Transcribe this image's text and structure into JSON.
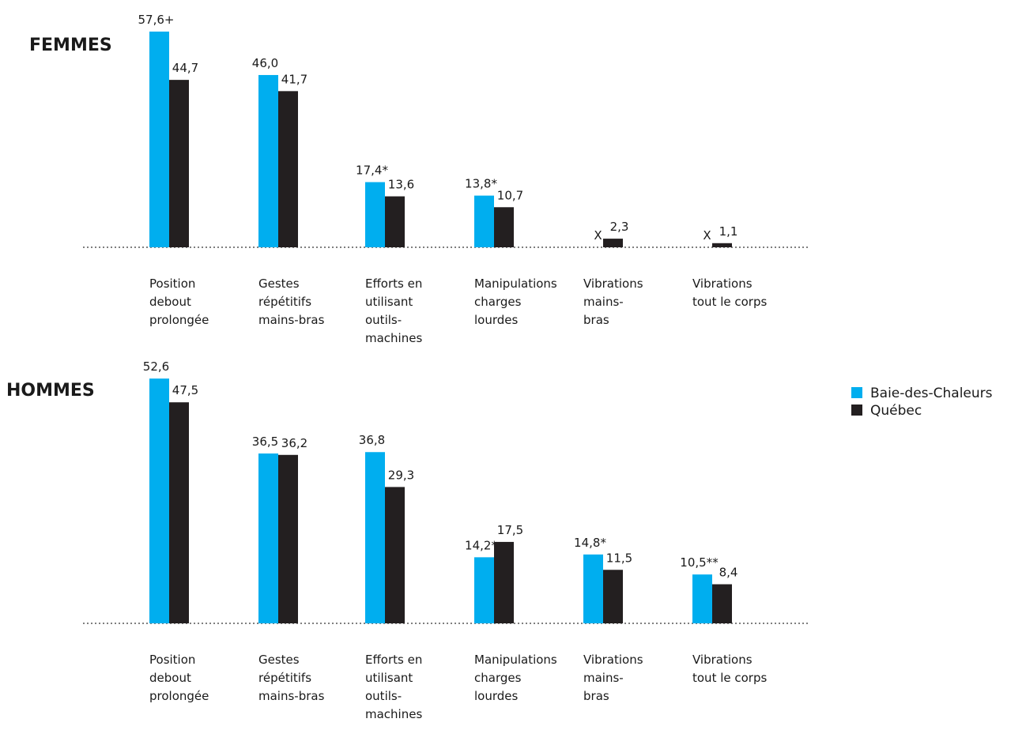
{
  "colors": {
    "baie": "#00aeef",
    "quebec": "#231f20"
  },
  "legend": {
    "items": [
      {
        "label": "Baie-des-Chaleurs",
        "color": "#00aeef"
      },
      {
        "label": "Québec",
        "color": "#231f20"
      }
    ],
    "placement": "right"
  },
  "chart_data": [
    {
      "type": "bar",
      "title": "FEMMES",
      "categories": [
        [
          "Position",
          "debout",
          "prolongée"
        ],
        [
          "Gestes",
          "répétitifs",
          "mains-bras"
        ],
        [
          "Efforts en",
          "utilisant",
          "outils-",
          "machines"
        ],
        [
          "Manipulations",
          "charges",
          "lourdes"
        ],
        [
          "Vibrations",
          "mains-",
          "bras"
        ],
        [
          "Vibrations",
          "tout le corps"
        ]
      ],
      "series": [
        {
          "name": "Baie-des-Chaleurs",
          "values": [
            57.6,
            46.0,
            17.4,
            13.8,
            null,
            null
          ],
          "labels": [
            "57,6+",
            "46,0",
            "17,4*",
            "13,8*",
            "X",
            "X"
          ]
        },
        {
          "name": "Québec",
          "values": [
            44.7,
            41.7,
            13.6,
            10.7,
            2.3,
            1.1
          ],
          "labels": [
            "44,7",
            "41,7",
            "13,6",
            "10,7",
            "2,3",
            "1,1"
          ]
        }
      ],
      "ylim": [
        0,
        60
      ],
      "grid": false
    },
    {
      "type": "bar",
      "title": "HOMMES",
      "categories": [
        [
          "Position",
          "debout",
          "prolongée"
        ],
        [
          "Gestes",
          "répétitifs",
          "mains-bras"
        ],
        [
          "Efforts en",
          "utilisant",
          "outils-",
          "machines"
        ],
        [
          "Manipulations",
          "charges",
          "lourdes"
        ],
        [
          "Vibrations",
          "mains-",
          "bras"
        ],
        [
          "Vibrations",
          "tout le corps"
        ]
      ],
      "series": [
        {
          "name": "Baie-des-Chaleurs",
          "values": [
            52.6,
            36.5,
            36.8,
            14.2,
            14.8,
            10.5
          ],
          "labels": [
            "52,6",
            "36,5",
            "36,8",
            "14,2*",
            "14,8*",
            "10,5**"
          ]
        },
        {
          "name": "Québec",
          "values": [
            47.5,
            36.2,
            29.3,
            17.5,
            11.5,
            8.4
          ],
          "labels": [
            "47,5",
            "36,2",
            "29,3",
            "17,5",
            "11,5",
            "8,4"
          ]
        }
      ],
      "ylim": [
        0,
        60
      ],
      "grid": false
    }
  ]
}
